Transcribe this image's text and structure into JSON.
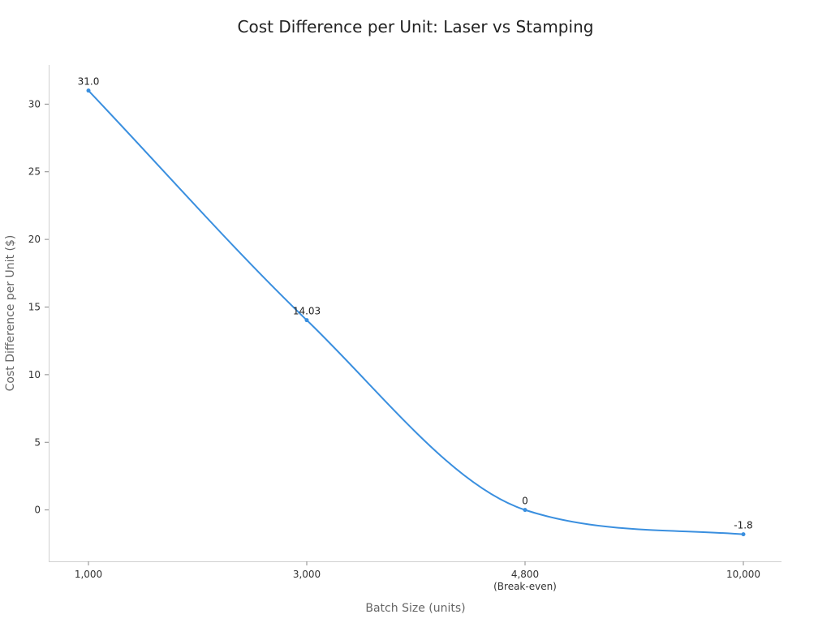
{
  "chart_data": {
    "type": "line",
    "title": "Cost Difference per Unit: Laser vs Stamping",
    "xlabel": "Batch Size (units)",
    "ylabel": "Cost Difference per Unit ($)",
    "categories": [
      "1,000",
      "3,000",
      "4,800",
      "10,000"
    ],
    "category_sublabels": [
      "",
      "",
      "(Break-even)",
      ""
    ],
    "x": [
      1000,
      3000,
      4800,
      10000
    ],
    "series": [
      {
        "values": [
          31.0,
          14.03,
          0,
          -1.8
        ],
        "data_labels": [
          "31.0",
          "14.03",
          "0",
          "-1.8"
        ],
        "color": "#3a8fdf"
      }
    ],
    "y_ticks": [
      0,
      5,
      10,
      15,
      20,
      25,
      30
    ],
    "ylim": [
      -3.8,
      32.9
    ],
    "grid": false,
    "legend": "none"
  }
}
